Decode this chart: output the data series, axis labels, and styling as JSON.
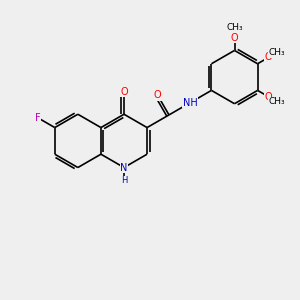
{
  "bg_color": "#efefef",
  "bond_color": "#000000",
  "bond_width": 1.2,
  "atom_colors": {
    "O": "#ff0000",
    "N": "#0000bb",
    "F": "#bb00bb",
    "C": "#000000"
  },
  "font_size": 7.0,
  "xlim": [
    0,
    10.5
  ],
  "ylim": [
    0,
    10.5
  ],
  "figsize": [
    3.0,
    3.0
  ],
  "dpi": 100
}
